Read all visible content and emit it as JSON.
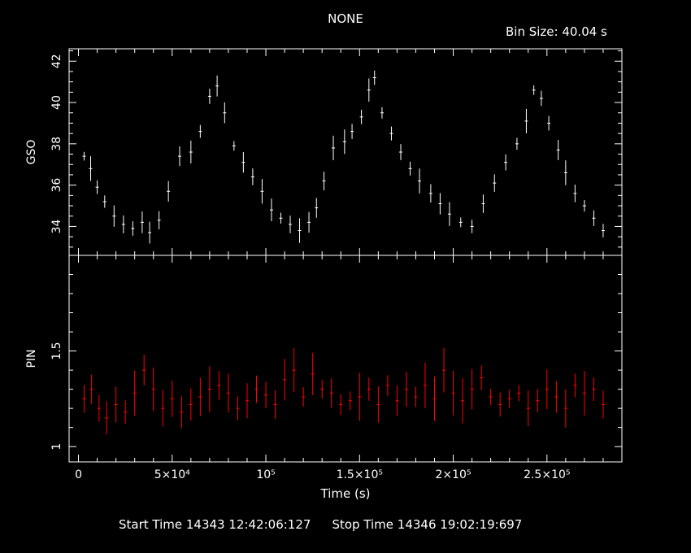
{
  "title": "NONE",
  "bin_size_label": "Bin Size:  40.04  s",
  "footer": {
    "start_label": "Start Time 14343 12:42:06:127",
    "stop_label": "Stop Time 14346 19:02:19:697"
  },
  "chart_data": [
    {
      "type": "scatter",
      "panel": "top",
      "ylabel": "GSO",
      "xlabel": "",
      "xlim": [
        -5000,
        290000
      ],
      "ylim": [
        32.6,
        42.6
      ],
      "yticks": [
        34,
        36,
        38,
        40,
        42
      ],
      "ytick_labels": [
        "34",
        "36",
        "38",
        "40",
        "42"
      ],
      "color": "#ffffff",
      "error_bars": true,
      "points": [
        [
          3000,
          37.4
        ],
        [
          6500,
          36.8
        ],
        [
          10000,
          35.9
        ],
        [
          14000,
          35.2
        ],
        [
          19000,
          34.5
        ],
        [
          24000,
          34.1
        ],
        [
          29000,
          33.9
        ],
        [
          34000,
          34.2
        ],
        [
          38000,
          33.7
        ],
        [
          43000,
          34.3
        ],
        [
          48000,
          35.7
        ],
        [
          54000,
          37.4
        ],
        [
          60000,
          37.6
        ],
        [
          65000,
          38.6
        ],
        [
          70000,
          40.3
        ],
        [
          74000,
          40.8
        ],
        [
          78000,
          39.5
        ],
        [
          83000,
          37.9
        ],
        [
          88000,
          37.1
        ],
        [
          93000,
          36.4
        ],
        [
          98000,
          35.7
        ],
        [
          103000,
          34.8
        ],
        [
          108000,
          34.4
        ],
        [
          113000,
          34.1
        ],
        [
          118000,
          33.8
        ],
        [
          123000,
          34.2
        ],
        [
          127000,
          34.9
        ],
        [
          131000,
          36.2
        ],
        [
          136000,
          37.8
        ],
        [
          142000,
          38.1
        ],
        [
          146000,
          38.6
        ],
        [
          151000,
          39.3
        ],
        [
          155000,
          40.6
        ],
        [
          158000,
          41.2
        ],
        [
          162000,
          39.5
        ],
        [
          167000,
          38.5
        ],
        [
          172000,
          37.6
        ],
        [
          177000,
          36.8
        ],
        [
          182000,
          36.2
        ],
        [
          188000,
          35.6
        ],
        [
          193000,
          35.1
        ],
        [
          198000,
          34.6
        ],
        [
          204000,
          34.2
        ],
        [
          210000,
          34.0
        ],
        [
          216000,
          35.1
        ],
        [
          222000,
          36.1
        ],
        [
          228000,
          37.1
        ],
        [
          234000,
          38.0
        ],
        [
          239000,
          39.1
        ],
        [
          243000,
          40.6
        ],
        [
          247000,
          40.2
        ],
        [
          251000,
          39.0
        ],
        [
          256000,
          37.7
        ],
        [
          260000,
          36.6
        ],
        [
          265000,
          35.6
        ],
        [
          270000,
          35.0
        ],
        [
          275000,
          34.4
        ],
        [
          280000,
          33.8
        ]
      ]
    },
    {
      "type": "scatter",
      "panel": "bottom",
      "ylabel": "PIN",
      "xlabel": "Time (s)",
      "xlim": [
        -5000,
        290000
      ],
      "ylim": [
        0.92,
        2.0
      ],
      "yticks": [
        1,
        1.5
      ],
      "ytick_labels": [
        "1",
        "1.5"
      ],
      "xticks": [
        0,
        50000,
        100000,
        150000,
        200000,
        250000
      ],
      "xtick_labels": [
        "0",
        "5×10⁴",
        "10⁵",
        "1.5×10⁵",
        "2×10⁵",
        "2.5×10⁵"
      ],
      "color": "#ff0000",
      "error_bars": true,
      "points": [
        [
          3000,
          1.25
        ],
        [
          7000,
          1.3
        ],
        [
          11000,
          1.2
        ],
        [
          15000,
          1.15
        ],
        [
          20000,
          1.22
        ],
        [
          25000,
          1.18
        ],
        [
          30000,
          1.28
        ],
        [
          35000,
          1.4
        ],
        [
          40000,
          1.3
        ],
        [
          45000,
          1.2
        ],
        [
          50000,
          1.25
        ],
        [
          55000,
          1.18
        ],
        [
          60000,
          1.22
        ],
        [
          65000,
          1.26
        ],
        [
          70000,
          1.3
        ],
        [
          75000,
          1.32
        ],
        [
          80000,
          1.28
        ],
        [
          85000,
          1.2
        ],
        [
          90000,
          1.24
        ],
        [
          95000,
          1.3
        ],
        [
          100000,
          1.27
        ],
        [
          105000,
          1.22
        ],
        [
          110000,
          1.35
        ],
        [
          115000,
          1.4
        ],
        [
          120000,
          1.26
        ],
        [
          125000,
          1.38
        ],
        [
          130000,
          1.3
        ],
        [
          135000,
          1.28
        ],
        [
          140000,
          1.22
        ],
        [
          145000,
          1.24
        ],
        [
          150000,
          1.26
        ],
        [
          155000,
          1.3
        ],
        [
          160000,
          1.22
        ],
        [
          165000,
          1.32
        ],
        [
          170000,
          1.24
        ],
        [
          175000,
          1.3
        ],
        [
          180000,
          1.26
        ],
        [
          185000,
          1.32
        ],
        [
          190000,
          1.25
        ],
        [
          195000,
          1.4
        ],
        [
          200000,
          1.28
        ],
        [
          205000,
          1.24
        ],
        [
          210000,
          1.3
        ],
        [
          215000,
          1.36
        ],
        [
          220000,
          1.26
        ],
        [
          225000,
          1.22
        ],
        [
          230000,
          1.25
        ],
        [
          235000,
          1.28
        ],
        [
          240000,
          1.2
        ],
        [
          245000,
          1.24
        ],
        [
          250000,
          1.3
        ],
        [
          255000,
          1.26
        ],
        [
          260000,
          1.2
        ],
        [
          265000,
          1.32
        ],
        [
          270000,
          1.28
        ],
        [
          275000,
          1.3
        ],
        [
          280000,
          1.22
        ]
      ]
    }
  ]
}
